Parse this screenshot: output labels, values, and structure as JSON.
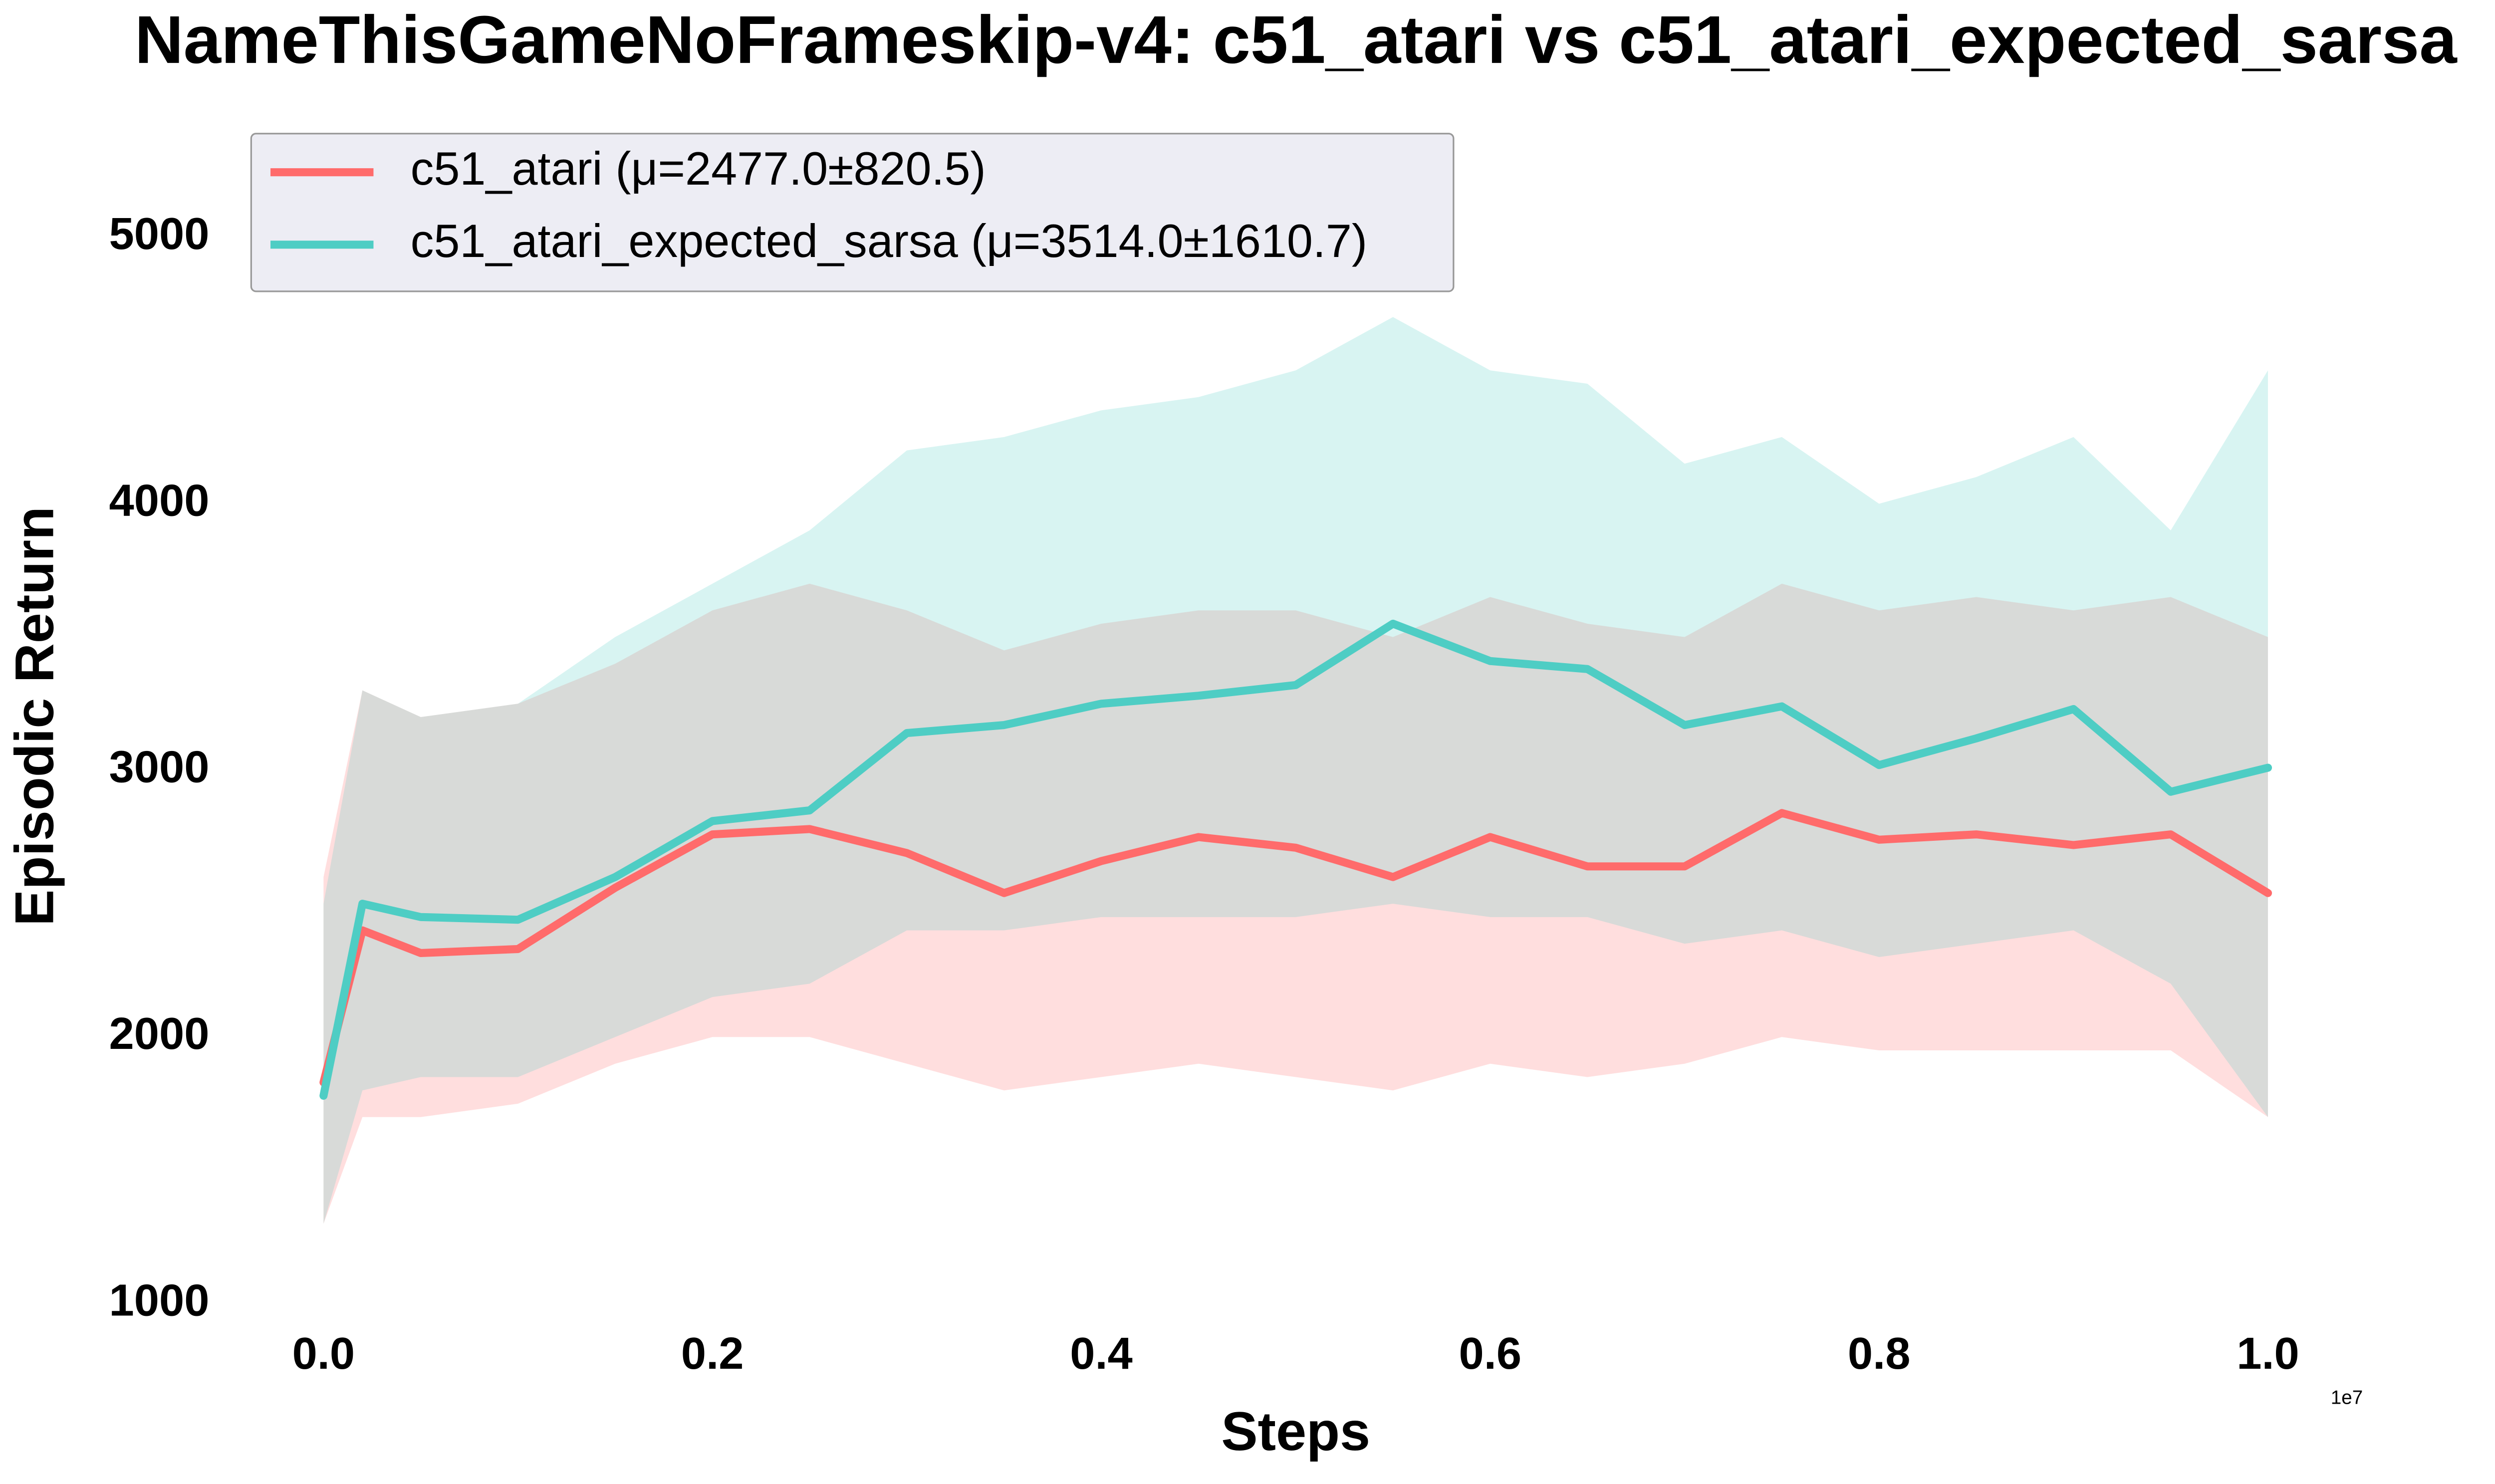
{
  "chart_data": {
    "type": "line",
    "title": "NameThisGameNoFrameskip-v4: c51_atari vs c51_atari_expected_sarsa",
    "x_label": "Steps",
    "y_label": "Episodic Return",
    "x_offset_label": "1e7",
    "x": [
      0,
      0.02,
      0.05,
      0.1,
      0.15,
      0.2,
      0.25,
      0.3,
      0.35,
      0.4,
      0.45,
      0.5,
      0.55,
      0.6,
      0.65,
      0.7,
      0.75,
      0.8,
      0.85,
      0.9,
      0.95,
      1.0
    ],
    "series": [
      {
        "name": "c51_atari (μ=2477.0±820.5)",
        "color": "#ff6b6b",
        "values": [
          1830,
          2400,
          2315,
          2330,
          2560,
          2760,
          2780,
          2690,
          2540,
          2660,
          2750,
          2710,
          2600,
          2750,
          2640,
          2640,
          2840,
          2740,
          2760,
          2720,
          2760,
          2540
        ],
        "lower": [
          1300,
          1700,
          1700,
          1750,
          1900,
          2000,
          2000,
          1900,
          1800,
          1850,
          1900,
          1850,
          1800,
          1900,
          1850,
          1900,
          2000,
          1950,
          1950,
          1950,
          1950,
          1700
        ],
        "upper": [
          2600,
          3300,
          3200,
          3250,
          3400,
          3600,
          3700,
          3600,
          3450,
          3550,
          3600,
          3600,
          3500,
          3650,
          3550,
          3500,
          3700,
          3600,
          3650,
          3600,
          3650,
          3500
        ]
      },
      {
        "name": "c51_atari_expected_sarsa (μ=3514.0±1610.7)",
        "color": "#4ecdc4",
        "values": [
          1780,
          2500,
          2450,
          2440,
          2600,
          2810,
          2850,
          3140,
          3170,
          3250,
          3280,
          3320,
          3550,
          3410,
          3380,
          3170,
          3240,
          3020,
          3120,
          3230,
          2920,
          3010
        ],
        "lower": [
          1300,
          1800,
          1850,
          1850,
          2000,
          2150,
          2200,
          2400,
          2400,
          2450,
          2450,
          2450,
          2500,
          2450,
          2450,
          2350,
          2400,
          2300,
          2350,
          2400,
          2200,
          1700
        ],
        "upper": [
          2500,
          3300,
          3200,
          3250,
          3500,
          3700,
          3900,
          4200,
          4250,
          4350,
          4400,
          4500,
          4700,
          4500,
          4450,
          4150,
          4250,
          4000,
          4100,
          4250,
          3900,
          4500
        ]
      }
    ],
    "xlim": [
      -0.02,
      1.05
    ],
    "ylim": [
      1000,
      5400
    ],
    "xticks": [
      {
        "value": 0,
        "label": "0.0"
      },
      {
        "value": 0.2,
        "label": "0.2"
      },
      {
        "value": 0.4,
        "label": "0.4"
      },
      {
        "value": 0.6,
        "label": "0.6"
      },
      {
        "value": 0.8,
        "label": "0.8"
      },
      {
        "value": 1.0,
        "label": "1.0"
      }
    ],
    "yticks": [
      1000,
      2000,
      3000,
      4000,
      5000
    ],
    "grid": false,
    "legend": "upper-left"
  }
}
